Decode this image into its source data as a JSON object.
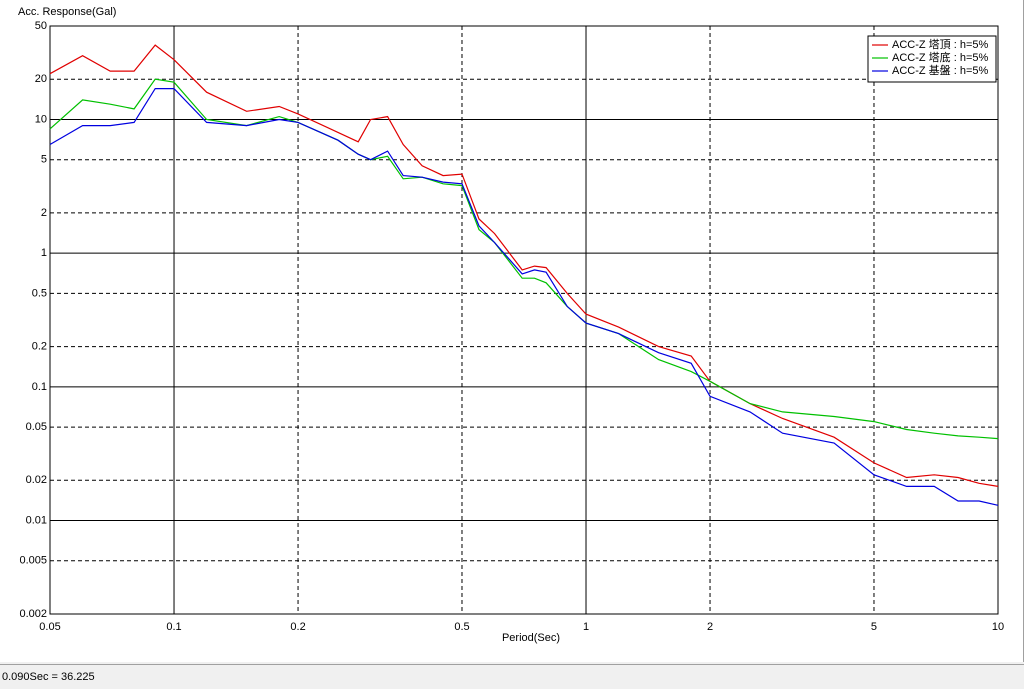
{
  "chart_data": {
    "type": "line",
    "y_label": "Acc. Response(Gal)",
    "x_label": "Period(Sec)",
    "x_log": true,
    "y_log": true,
    "grid": true,
    "legend": "top-right",
    "xlim": [
      0.05,
      10
    ],
    "xticks": [
      0.05,
      0.1,
      0.2,
      0.5,
      1,
      2,
      5,
      10
    ],
    "ylim": [
      0.002,
      50
    ],
    "yticks": [
      0.002,
      0.005,
      0.01,
      0.02,
      0.05,
      0.1,
      0.2,
      0.5,
      1,
      2,
      5,
      10,
      20,
      50
    ],
    "x": [
      0.05,
      0.06,
      0.07,
      0.08,
      0.09,
      0.1,
      0.12,
      0.15,
      0.18,
      0.2,
      0.25,
      0.28,
      0.3,
      0.33,
      0.36,
      0.4,
      0.45,
      0.5,
      0.55,
      0.6,
      0.7,
      0.75,
      0.8,
      0.9,
      1,
      1.2,
      1.5,
      1.8,
      2,
      2.5,
      3,
      4,
      5,
      6,
      7,
      8,
      9,
      10
    ],
    "series": [
      {
        "name": "ACC-Z 塔頂 : h=5%",
        "color": "#e00000",
        "values": [
          22,
          30,
          23,
          23,
          36,
          28,
          16,
          11.5,
          12.5,
          11,
          8,
          6.8,
          10,
          10.5,
          6.5,
          4.5,
          3.8,
          3.9,
          1.8,
          1.4,
          0.75,
          0.8,
          0.78,
          0.5,
          0.35,
          0.28,
          0.2,
          0.17,
          0.11,
          0.075,
          0.058,
          0.042,
          0.027,
          0.021,
          0.022,
          0.021,
          0.019,
          0.018
        ]
      },
      {
        "name": "ACC-Z 塔底 : h=5%",
        "color": "#00c000",
        "values": [
          8.5,
          14,
          13,
          12,
          20,
          19,
          10,
          9,
          10.5,
          9.5,
          7,
          5.5,
          5,
          5.3,
          3.6,
          3.7,
          3.3,
          3.2,
          1.5,
          1.2,
          0.65,
          0.65,
          0.6,
          0.4,
          0.3,
          0.25,
          0.16,
          0.13,
          0.11,
          0.075,
          0.065,
          0.06,
          0.055,
          0.048,
          0.045,
          0.043,
          0.042,
          0.041
        ]
      },
      {
        "name": "ACC-Z 基盤 : h=5%",
        "color": "#0000e0",
        "values": [
          6.5,
          9,
          9,
          9.5,
          17,
          17,
          9.5,
          9,
          10,
          9.5,
          7,
          5.5,
          5,
          5.8,
          3.8,
          3.7,
          3.4,
          3.3,
          1.6,
          1.2,
          0.7,
          0.75,
          0.72,
          0.4,
          0.3,
          0.25,
          0.18,
          0.15,
          0.085,
          0.065,
          0.045,
          0.038,
          0.022,
          0.018,
          0.018,
          0.014,
          0.014,
          0.013
        ]
      }
    ]
  },
  "status_bar": "0.090Sec = 36.225"
}
